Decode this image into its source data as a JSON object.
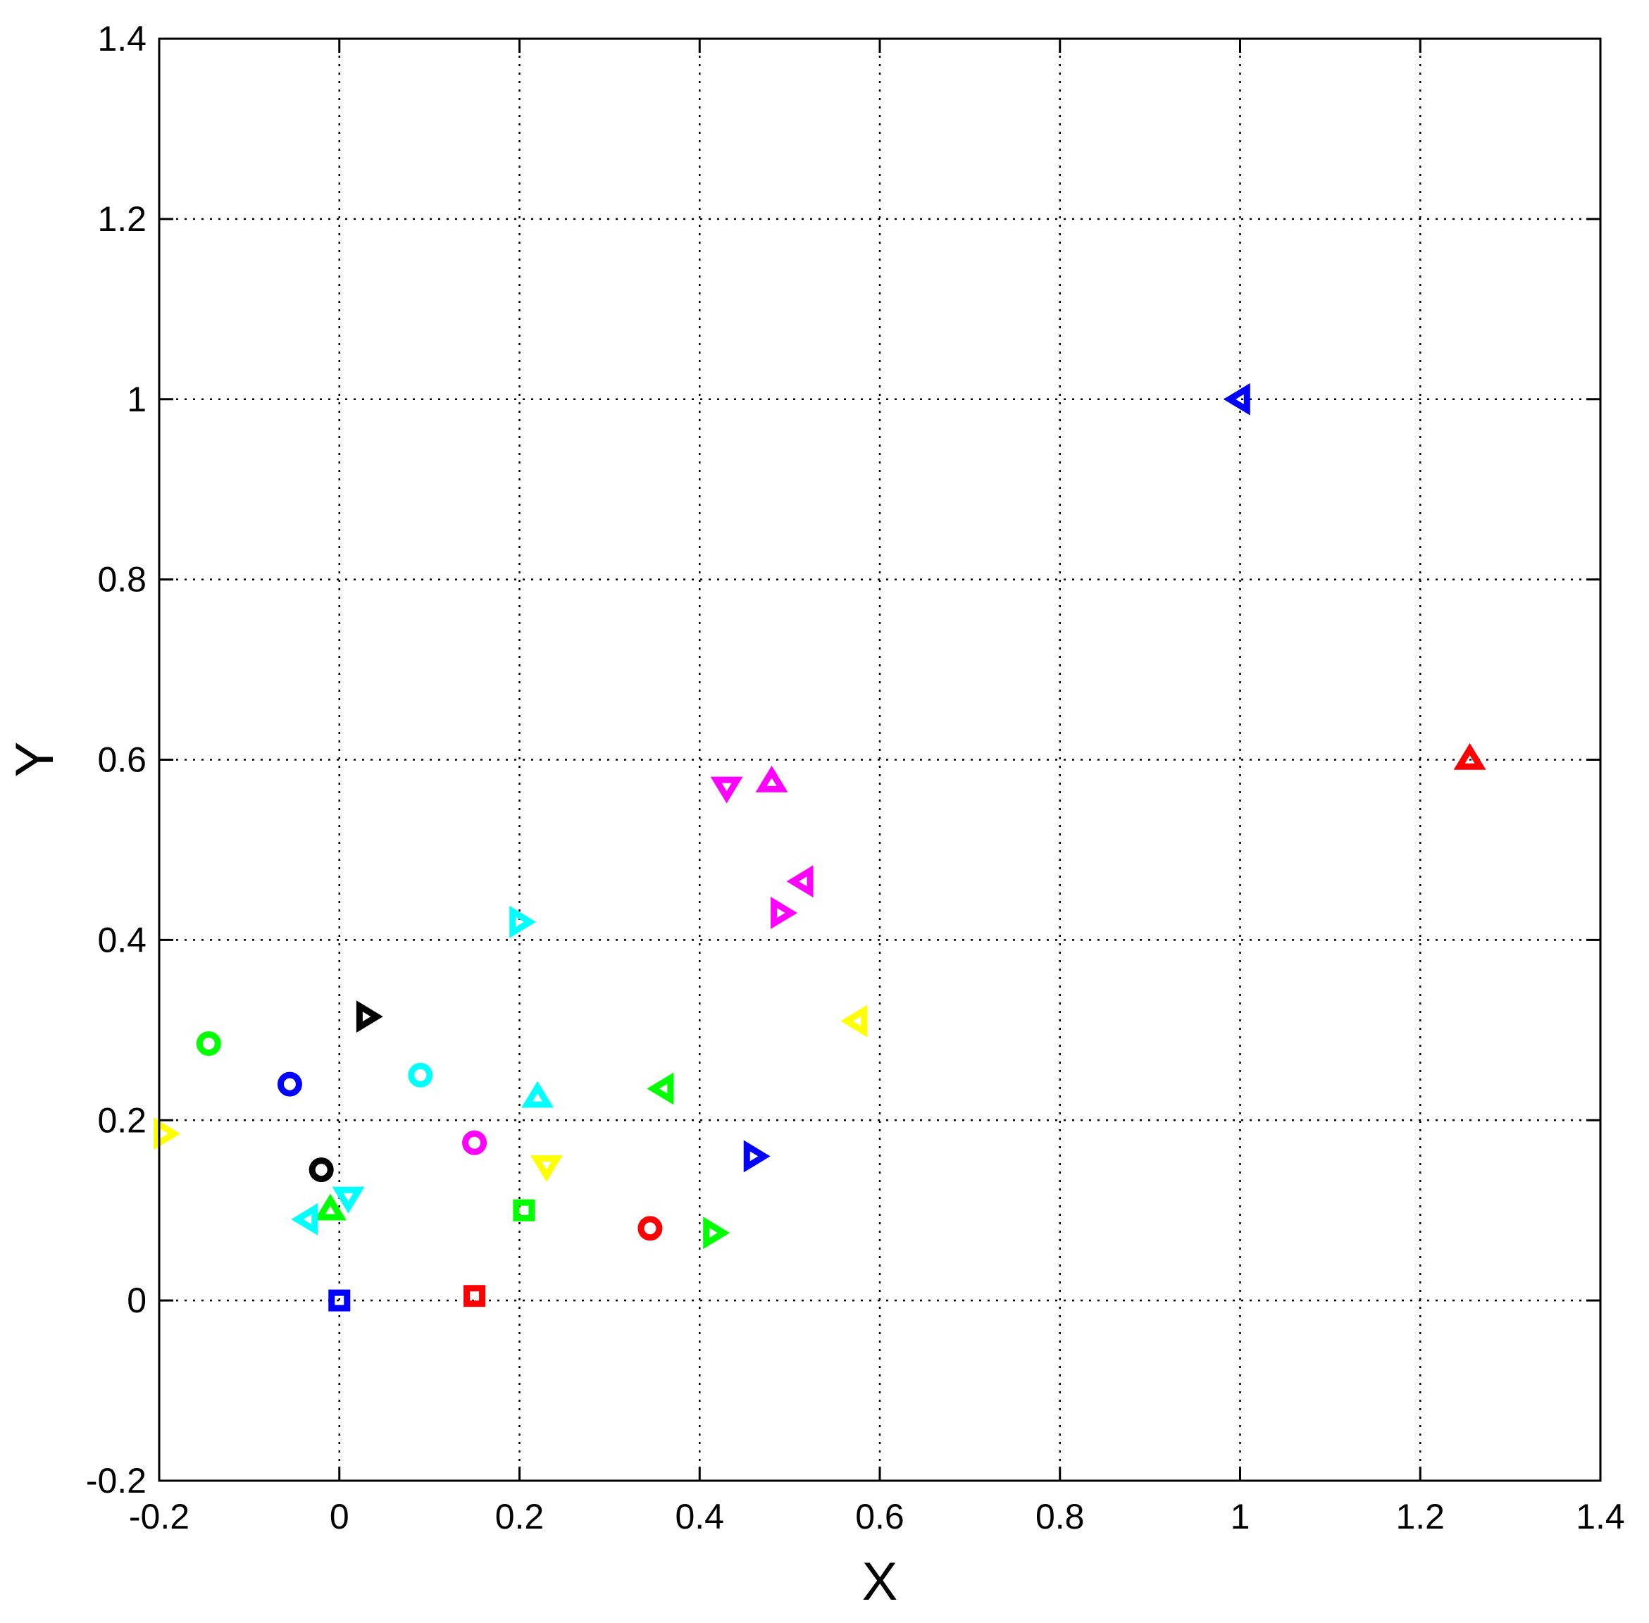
{
  "chart_data": {
    "type": "scatter",
    "xlabel": "X",
    "ylabel": "Y",
    "xlim": [
      -0.2,
      1.4
    ],
    "ylim": [
      -0.2,
      1.4
    ],
    "x_ticks": [
      "-0.2",
      "0",
      "0.2",
      "0.4",
      "0.6",
      "0.8",
      "1",
      "1.2",
      "1.4"
    ],
    "y_ticks": [
      "-0.2",
      "0",
      "0.2",
      "0.4",
      "0.6",
      "0.8",
      "1",
      "1.2",
      "1.4"
    ],
    "grid": true,
    "points": [
      {
        "x": 0.0,
        "y": 0.0,
        "marker": "square",
        "color": "#0000FF"
      },
      {
        "x": 0.15,
        "y": 0.005,
        "marker": "square",
        "color": "#FF0000"
      },
      {
        "x": 0.205,
        "y": 0.1,
        "marker": "square",
        "color": "#00FF00"
      },
      {
        "x": -0.055,
        "y": 0.24,
        "marker": "circle",
        "color": "#0000FF"
      },
      {
        "x": -0.145,
        "y": 0.285,
        "marker": "circle",
        "color": "#00FF00"
      },
      {
        "x": 0.09,
        "y": 0.25,
        "marker": "circle",
        "color": "#00FFFF"
      },
      {
        "x": 0.15,
        "y": 0.175,
        "marker": "circle",
        "color": "#FF00FF"
      },
      {
        "x": -0.02,
        "y": 0.145,
        "marker": "circle",
        "color": "#000000"
      },
      {
        "x": 0.345,
        "y": 0.08,
        "marker": "circle",
        "color": "#FF0000"
      },
      {
        "x": 1.255,
        "y": 0.6,
        "marker": "triangle-up",
        "color": "#FF0000"
      },
      {
        "x": 0.48,
        "y": 0.575,
        "marker": "triangle-up",
        "color": "#FF00FF"
      },
      {
        "x": 0.22,
        "y": 0.225,
        "marker": "triangle-up",
        "color": "#00FFFF"
      },
      {
        "x": -0.01,
        "y": 0.1,
        "marker": "triangle-up",
        "color": "#00FF00"
      },
      {
        "x": 0.43,
        "y": 0.57,
        "marker": "triangle-down",
        "color": "#FF00FF"
      },
      {
        "x": 0.23,
        "y": 0.15,
        "marker": "triangle-down",
        "color": "#FFFF00"
      },
      {
        "x": 0.01,
        "y": 0.115,
        "marker": "triangle-down",
        "color": "#00FFFF"
      },
      {
        "x": 1.0,
        "y": 1.0,
        "marker": "triangle-left",
        "color": "#0000FF"
      },
      {
        "x": 0.515,
        "y": 0.465,
        "marker": "triangle-left",
        "color": "#FF00FF"
      },
      {
        "x": 0.575,
        "y": 0.31,
        "marker": "triangle-left",
        "color": "#FFFF00"
      },
      {
        "x": 0.36,
        "y": 0.235,
        "marker": "triangle-left",
        "color": "#00FF00"
      },
      {
        "x": -0.035,
        "y": 0.09,
        "marker": "triangle-left",
        "color": "#00FFFF"
      },
      {
        "x": 0.49,
        "y": 0.43,
        "marker": "triangle-right",
        "color": "#FF00FF"
      },
      {
        "x": 0.2,
        "y": 0.42,
        "marker": "triangle-right",
        "color": "#00FFFF"
      },
      {
        "x": 0.03,
        "y": 0.315,
        "marker": "triangle-right",
        "color": "#000000"
      },
      {
        "x": -0.195,
        "y": 0.185,
        "marker": "triangle-right",
        "color": "#FFFF00"
      },
      {
        "x": 0.46,
        "y": 0.16,
        "marker": "triangle-right",
        "color": "#0000FF"
      },
      {
        "x": 0.415,
        "y": 0.075,
        "marker": "triangle-right",
        "color": "#00FF00"
      }
    ]
  }
}
